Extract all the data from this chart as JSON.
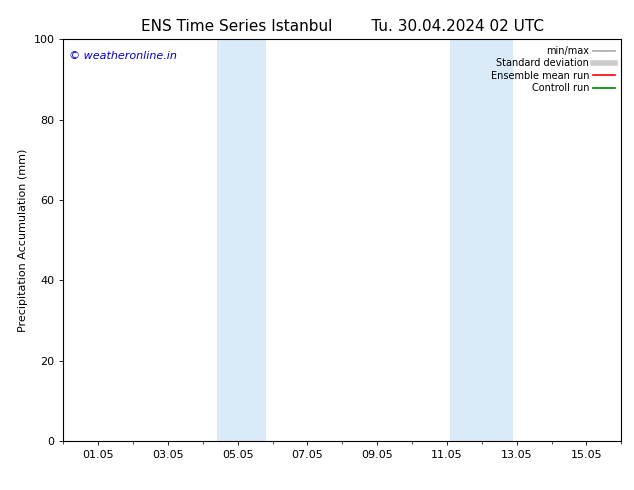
{
  "title": "ENS Time Series Istanbul",
  "title2": "Tu. 30.04.2024 02 UTC",
  "ylabel": "Precipitation Accumulation (mm)",
  "ylim": [
    0,
    100
  ],
  "yticks": [
    0,
    20,
    40,
    60,
    80,
    100
  ],
  "xtick_labels": [
    "01.05",
    "03.05",
    "05.05",
    "07.05",
    "09.05",
    "11.05",
    "13.05",
    "15.05"
  ],
  "xtick_positions": [
    1,
    3,
    5,
    7,
    9,
    11,
    13,
    15
  ],
  "xlim": [
    0,
    16
  ],
  "shaded_regions": [
    {
      "xmin": 4.4,
      "xmax": 5.8
    },
    {
      "xmin": 11.1,
      "xmax": 12.9
    }
  ],
  "shaded_color": "#daeaf8",
  "watermark_text": "© weatheronline.in",
  "watermark_color": "#0000cc",
  "legend_items": [
    {
      "label": "min/max",
      "color": "#aaaaaa",
      "lw": 1.2
    },
    {
      "label": "Standard deviation",
      "color": "#cccccc",
      "lw": 4.0
    },
    {
      "label": "Ensemble mean run",
      "color": "#ff0000",
      "lw": 1.2
    },
    {
      "label": "Controll run",
      "color": "#008000",
      "lw": 1.2
    }
  ],
  "bg_color": "#ffffff",
  "title_fontsize": 11,
  "ylabel_fontsize": 8,
  "tick_fontsize": 8,
  "watermark_fontsize": 8,
  "legend_fontsize": 7
}
